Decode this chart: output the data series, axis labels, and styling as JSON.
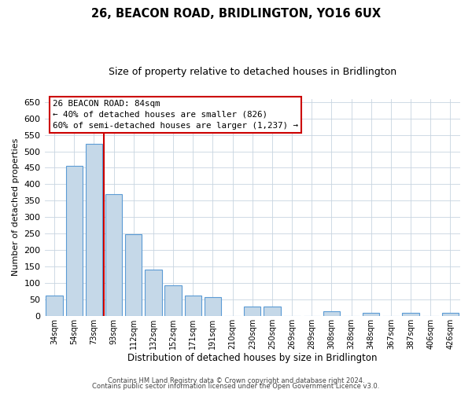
{
  "title": "26, BEACON ROAD, BRIDLINGTON, YO16 6UX",
  "subtitle": "Size of property relative to detached houses in Bridlington",
  "xlabel": "Distribution of detached houses by size in Bridlington",
  "ylabel": "Number of detached properties",
  "bar_labels": [
    "34sqm",
    "54sqm",
    "73sqm",
    "93sqm",
    "112sqm",
    "132sqm",
    "152sqm",
    "171sqm",
    "191sqm",
    "210sqm",
    "230sqm",
    "250sqm",
    "269sqm",
    "289sqm",
    "308sqm",
    "328sqm",
    "348sqm",
    "367sqm",
    "387sqm",
    "406sqm",
    "426sqm"
  ],
  "bar_heights": [
    62,
    457,
    522,
    370,
    248,
    140,
    93,
    62,
    57,
    0,
    28,
    29,
    0,
    0,
    13,
    0,
    10,
    0,
    10,
    0,
    10
  ],
  "bar_color": "#c5d8e8",
  "bar_edge_color": "#5b9bd5",
  "ylim": [
    0,
    660
  ],
  "yticks": [
    0,
    50,
    100,
    150,
    200,
    250,
    300,
    350,
    400,
    450,
    500,
    550,
    600,
    650
  ],
  "vline_color": "#cc0000",
  "vline_x_idx": 2.5,
  "annotation_title": "26 BEACON ROAD: 84sqm",
  "annotation_line1": "← 40% of detached houses are smaller (826)",
  "annotation_line2": "60% of semi-detached houses are larger (1,237) →",
  "footer1": "Contains HM Land Registry data © Crown copyright and database right 2024.",
  "footer2": "Contains public sector information licensed under the Open Government Licence v3.0.",
  "background_color": "#ffffff",
  "grid_color": "#c8d4e0"
}
